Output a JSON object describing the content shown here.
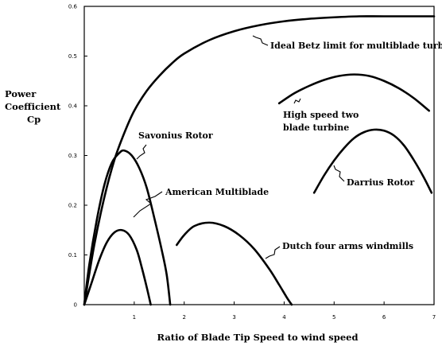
{
  "chart_data": {
    "type": "line",
    "title": "",
    "xlabel": "Ratio of Blade Tip Speed to wind speed",
    "ylabel_lines": [
      "Power",
      "Coefficient",
      "Cp"
    ],
    "xlim": [
      0,
      7
    ],
    "ylim": [
      0,
      0.6
    ],
    "x_ticks": [
      1,
      2,
      3,
      4,
      5,
      6,
      7
    ],
    "y_ticks": [
      0,
      0.1,
      0.2,
      0.3,
      0.4,
      0.5,
      0.6
    ],
    "x_tick_labels": [
      "1",
      "2",
      "3",
      "4",
      "5",
      "6",
      "7"
    ],
    "y_tick_labels": [
      "0",
      "0.1",
      "0.2",
      "0.3",
      "0.4",
      "0.5",
      "0.6"
    ],
    "grid": false,
    "series": [
      {
        "id": "betz",
        "label": "Ideal Betz limit for multiblade turbine",
        "points": [
          [
            0,
            0
          ],
          [
            0.2,
            0.12
          ],
          [
            0.4,
            0.215
          ],
          [
            0.6,
            0.29
          ],
          [
            0.8,
            0.345
          ],
          [
            1.0,
            0.39
          ],
          [
            1.25,
            0.43
          ],
          [
            1.5,
            0.46
          ],
          [
            1.75,
            0.485
          ],
          [
            2.0,
            0.505
          ],
          [
            2.5,
            0.532
          ],
          [
            3.0,
            0.55
          ],
          [
            3.5,
            0.562
          ],
          [
            4.0,
            0.57
          ],
          [
            4.5,
            0.575
          ],
          [
            5.0,
            0.578
          ],
          [
            5.5,
            0.58
          ],
          [
            6.0,
            0.58
          ],
          [
            7.0,
            0.58
          ]
        ]
      },
      {
        "id": "savonius",
        "label": "Savonius Rotor",
        "points": [
          [
            0,
            0
          ],
          [
            0.1,
            0.08
          ],
          [
            0.25,
            0.17
          ],
          [
            0.4,
            0.24
          ],
          [
            0.55,
            0.285
          ],
          [
            0.7,
            0.305
          ],
          [
            0.8,
            0.31
          ],
          [
            0.95,
            0.3
          ],
          [
            1.1,
            0.275
          ],
          [
            1.25,
            0.235
          ],
          [
            1.4,
            0.175
          ],
          [
            1.55,
            0.11
          ],
          [
            1.65,
            0.06
          ],
          [
            1.72,
            0.0
          ]
        ]
      },
      {
        "id": "american",
        "label": "American Multiblade",
        "points": [
          [
            0,
            0
          ],
          [
            0.15,
            0.045
          ],
          [
            0.3,
            0.09
          ],
          [
            0.45,
            0.125
          ],
          [
            0.6,
            0.145
          ],
          [
            0.75,
            0.15
          ],
          [
            0.9,
            0.14
          ],
          [
            1.05,
            0.11
          ],
          [
            1.15,
            0.075
          ],
          [
            1.25,
            0.035
          ],
          [
            1.33,
            0.0
          ]
        ]
      },
      {
        "id": "dutch",
        "label": "Dutch four arms windmills",
        "points": [
          [
            1.85,
            0.12
          ],
          [
            2.0,
            0.14
          ],
          [
            2.2,
            0.158
          ],
          [
            2.5,
            0.165
          ],
          [
            2.8,
            0.158
          ],
          [
            3.1,
            0.14
          ],
          [
            3.4,
            0.112
          ],
          [
            3.7,
            0.072
          ],
          [
            3.9,
            0.04
          ],
          [
            4.05,
            0.015
          ],
          [
            4.15,
            0.0
          ]
        ]
      },
      {
        "id": "highspeed",
        "label_lines": [
          "High speed two",
          "blade turbine"
        ],
        "points": [
          [
            3.9,
            0.405
          ],
          [
            4.2,
            0.425
          ],
          [
            4.5,
            0.44
          ],
          [
            4.8,
            0.452
          ],
          [
            5.1,
            0.46
          ],
          [
            5.4,
            0.463
          ],
          [
            5.7,
            0.46
          ],
          [
            6.0,
            0.45
          ],
          [
            6.3,
            0.435
          ],
          [
            6.6,
            0.415
          ],
          [
            6.9,
            0.39
          ]
        ]
      },
      {
        "id": "darrius",
        "label": "Darrius Rotor",
        "points": [
          [
            4.6,
            0.225
          ],
          [
            4.8,
            0.26
          ],
          [
            5.0,
            0.29
          ],
          [
            5.2,
            0.315
          ],
          [
            5.4,
            0.335
          ],
          [
            5.6,
            0.347
          ],
          [
            5.8,
            0.352
          ],
          [
            6.0,
            0.35
          ],
          [
            6.2,
            0.34
          ],
          [
            6.4,
            0.32
          ],
          [
            6.6,
            0.29
          ],
          [
            6.8,
            0.255
          ],
          [
            6.95,
            0.225
          ]
        ]
      }
    ]
  }
}
